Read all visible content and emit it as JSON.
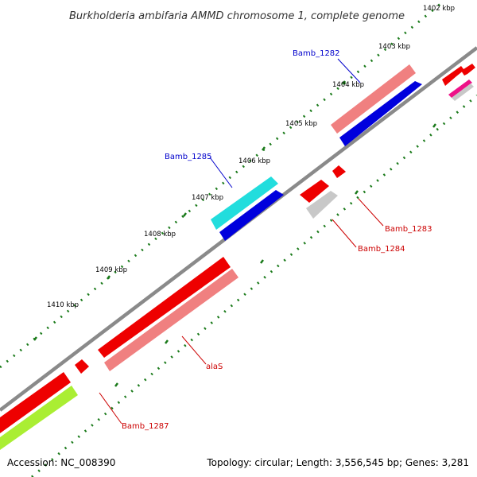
{
  "title": "Burkholderia ambifaria AMMD chromosome 1, complete genome",
  "footer": {
    "accession": "Accession: NC_008390",
    "topology": "Topology: circular; Length: 3,556,545 bp; Genes: 3,281"
  },
  "scale_labels": [
    "1402 kbp",
    "1403 kbp",
    "1404 kbp",
    "1405 kbp",
    "1406 kbp",
    "1407 kbp",
    "1408 kbp",
    "1409 kbp",
    "1410 kbp"
  ],
  "gene_labels": [
    {
      "name": "Bamb_1282",
      "color": "#0000cc"
    },
    {
      "name": "Bamb_1285",
      "color": "#0000cc"
    },
    {
      "name": "Bamb_1283",
      "color": "#cc0000"
    },
    {
      "name": "Bamb_1284",
      "color": "#cc0000"
    },
    {
      "name": "alaS",
      "color": "#cc0000"
    },
    {
      "name": "Bamb_1287",
      "color": "#cc0000"
    }
  ],
  "colors": {
    "backbone": "#808080",
    "forward_cds": "#ff0000",
    "reverse_cds": "#f08080",
    "ticks": "#228b22"
  }
}
